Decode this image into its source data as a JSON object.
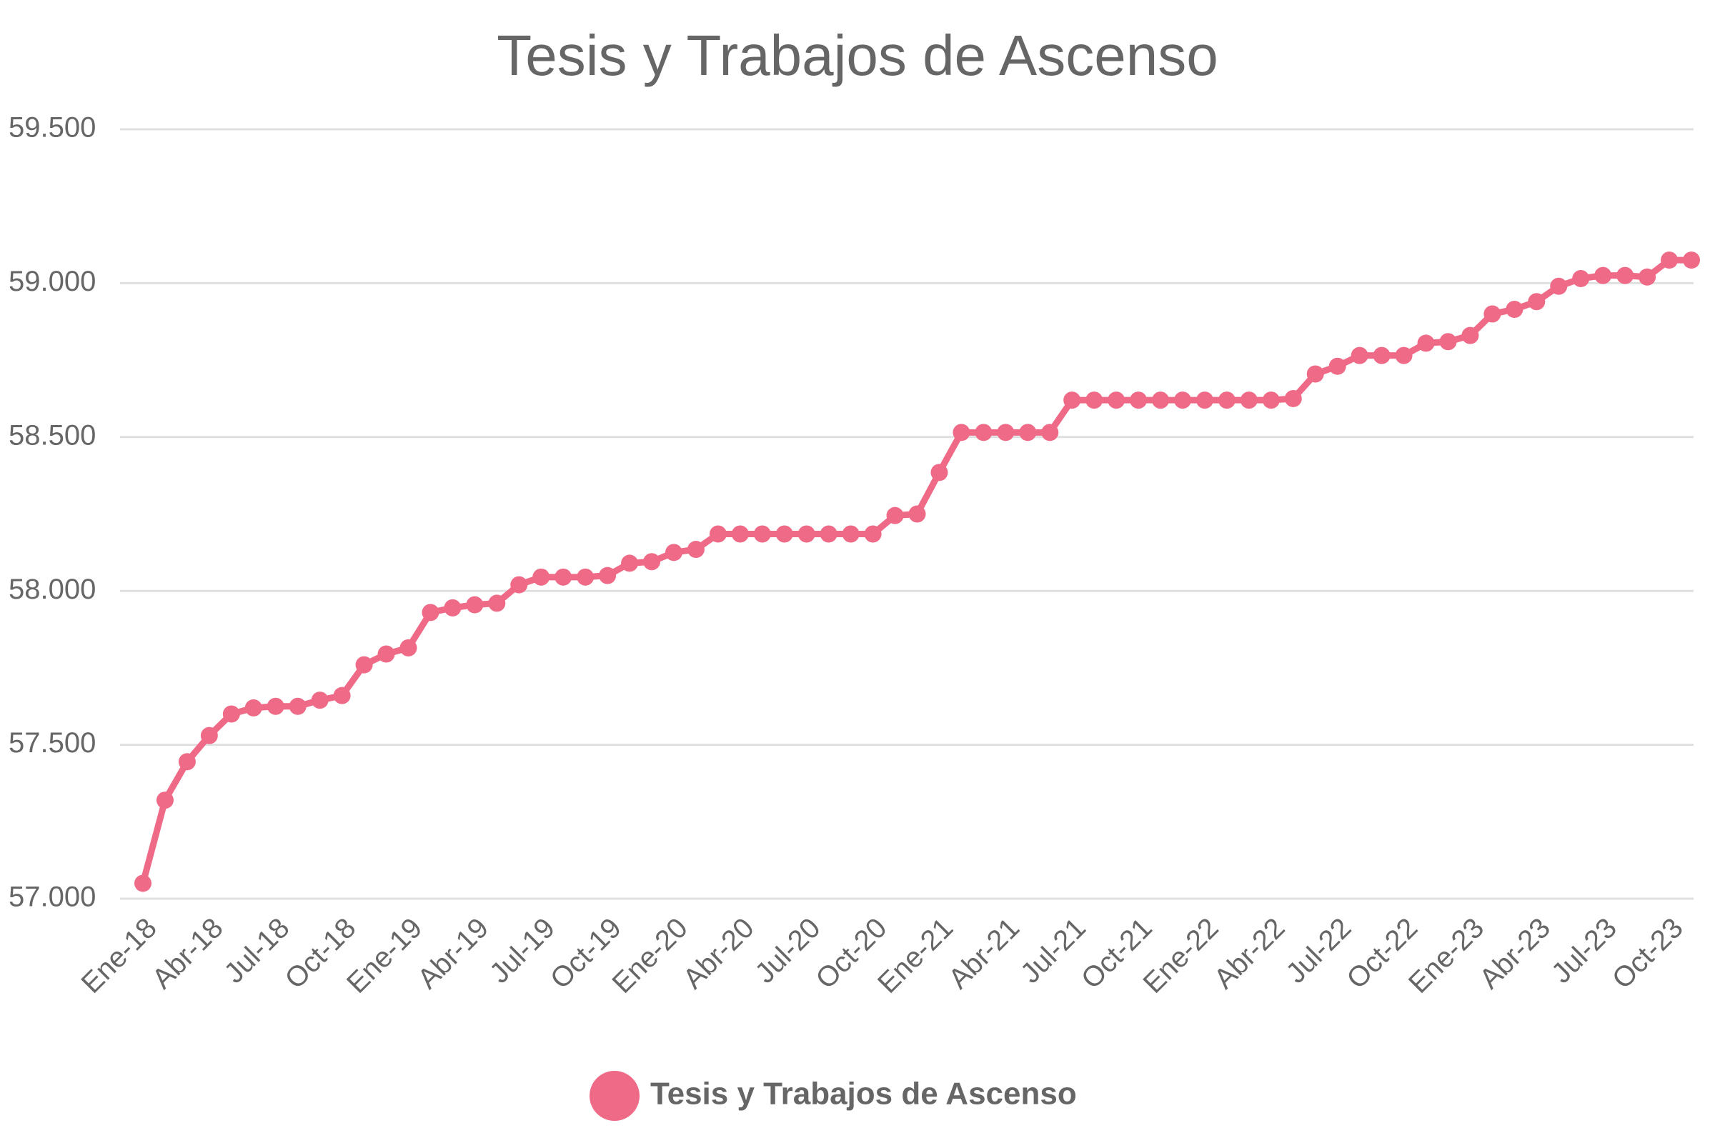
{
  "chart_data": {
    "type": "line",
    "title": "Tesis y Trabajos de Ascenso",
    "categories": [
      "Ene-18",
      null,
      null,
      "Abr-18",
      null,
      null,
      "Jul-18",
      null,
      null,
      "Oct-18",
      null,
      null,
      "Ene-19",
      null,
      null,
      "Abr-19",
      null,
      null,
      "Jul-19",
      null,
      null,
      "Oct-19",
      null,
      null,
      "Ene-20",
      null,
      null,
      "Abr-20",
      null,
      null,
      "Jul-20",
      null,
      null,
      "Oct-20",
      null,
      null,
      "Ene-21",
      null,
      null,
      "Abr-21",
      null,
      null,
      "Jul-21",
      null,
      null,
      "Oct-21",
      null,
      null,
      "Ene-22",
      null,
      null,
      "Abr-22",
      null,
      null,
      "Jul-22",
      null,
      null,
      "Oct-22",
      null,
      null,
      "Ene-23",
      null,
      null,
      "Abr-23",
      null,
      null,
      "Jul-23",
      null,
      null,
      "Oct-23",
      null
    ],
    "series": [
      {
        "name": "Tesis y Trabajos de Ascenso",
        "color": "#ee6a87",
        "values": [
          57050,
          57320,
          57445,
          57530,
          57600,
          57620,
          57625,
          57625,
          57645,
          57660,
          57760,
          57795,
          57815,
          57930,
          57945,
          57955,
          57960,
          58020,
          58045,
          58045,
          58045,
          58050,
          58090,
          58095,
          58125,
          58135,
          58185,
          58185,
          58185,
          58185,
          58185,
          58185,
          58185,
          58185,
          58245,
          58250,
          58385,
          58515,
          58515,
          58515,
          58515,
          58515,
          58620,
          58620,
          58620,
          58620,
          58620,
          58620,
          58620,
          58620,
          58620,
          58620,
          58625,
          58705,
          58730,
          58765,
          58765,
          58765,
          58805,
          58810,
          58830,
          58900,
          58915,
          58940,
          58990,
          59015,
          59025,
          59025,
          59020,
          59075,
          59075
        ]
      }
    ],
    "ylim": [
      57000,
      59500
    ],
    "yticks": [
      {
        "value": 57000,
        "label": "57.000"
      },
      {
        "value": 57500,
        "label": "57.500"
      },
      {
        "value": 58000,
        "label": "58.000"
      },
      {
        "value": 58500,
        "label": "58.500"
      },
      {
        "value": 59000,
        "label": "59.000"
      },
      {
        "value": 59500,
        "label": "59.500"
      }
    ],
    "grid": true,
    "legend": "bottom"
  }
}
